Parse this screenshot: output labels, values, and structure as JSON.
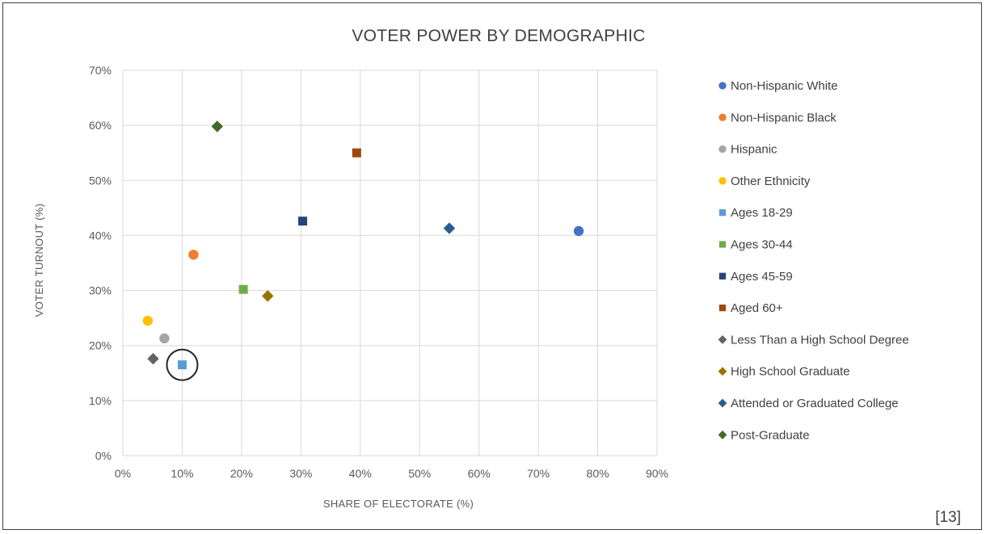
{
  "chart_data": {
    "type": "scatter",
    "title": "VOTER POWER BY DEMOGRAPHIC",
    "xlabel": "SHARE OF ELECTORATE (%)",
    "ylabel": "VOTER TURNOUT (%)",
    "xlim": [
      0,
      0.9
    ],
    "ylim": [
      0,
      0.7
    ],
    "x_ticks": [
      "0%",
      "10%",
      "20%",
      "30%",
      "40%",
      "50%",
      "60%",
      "70%",
      "80%",
      "90%"
    ],
    "y_ticks": [
      "0%",
      "10%",
      "20%",
      "30%",
      "40%",
      "50%",
      "60%",
      "70%"
    ],
    "grid": true,
    "legend_position": "right",
    "series": [
      {
        "name": "Non-Hispanic White",
        "marker": "circle",
        "color": "#4472c4",
        "x": 0.768,
        "y": 0.408
      },
      {
        "name": "Non-Hispanic Black",
        "marker": "circle",
        "color": "#ed7d31",
        "x": 0.119,
        "y": 0.365
      },
      {
        "name": "Hispanic",
        "marker": "circle",
        "color": "#a5a5a5",
        "x": 0.07,
        "y": 0.213
      },
      {
        "name": "Other Ethnicity",
        "marker": "circle",
        "color": "#ffc000",
        "x": 0.042,
        "y": 0.245
      },
      {
        "name": "Ages 18-29",
        "marker": "square",
        "color": "#5b9bd5",
        "x": 0.1,
        "y": 0.165,
        "highlighted": true
      },
      {
        "name": "Ages 30-44",
        "marker": "square",
        "color": "#70ad47",
        "x": 0.203,
        "y": 0.302
      },
      {
        "name": "Ages 45-59",
        "marker": "square",
        "color": "#264478",
        "x": 0.303,
        "y": 0.426
      },
      {
        "name": "Aged 60+",
        "marker": "square",
        "color": "#9e480e",
        "x": 0.394,
        "y": 0.55
      },
      {
        "name": "Less Than a High School Degree",
        "marker": "diamond",
        "color": "#636363",
        "x": 0.051,
        "y": 0.176
      },
      {
        "name": "High School Graduate",
        "marker": "diamond",
        "color": "#997300",
        "x": 0.244,
        "y": 0.29
      },
      {
        "name": "Attended or Graduated College",
        "marker": "diamond",
        "color": "#255e91",
        "x": 0.55,
        "y": 0.413
      },
      {
        "name": "Post-Graduate",
        "marker": "diamond",
        "color": "#43682b",
        "x": 0.159,
        "y": 0.598
      }
    ]
  },
  "footnote": "[13]"
}
